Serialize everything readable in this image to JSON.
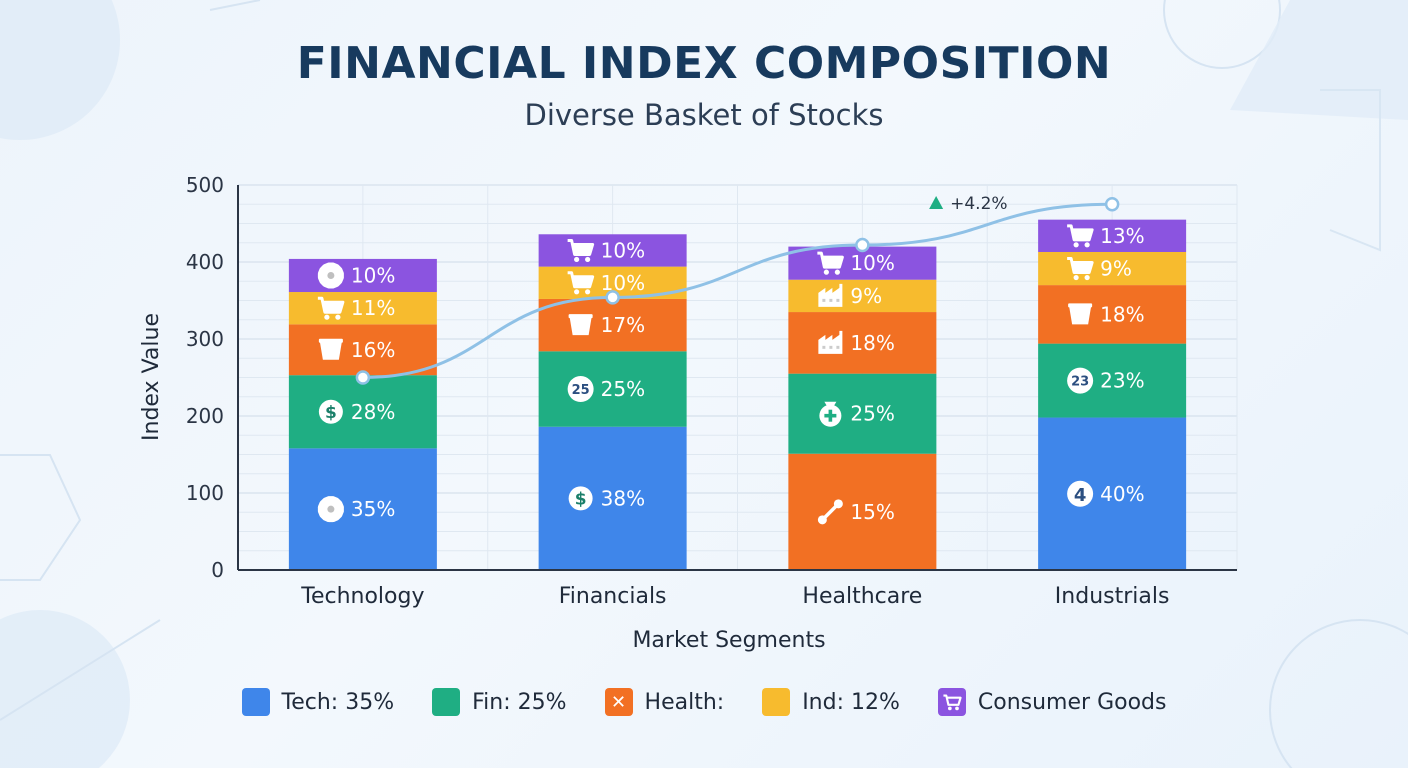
{
  "title": "FINANCIAL INDEX COMPOSITION",
  "subtitle": "Diverse Basket of Stocks",
  "chart_data": {
    "type": "bar",
    "stacked": true,
    "xlabel": "Market Segments",
    "ylabel": "Index Value",
    "ylim": [
      0,
      500
    ],
    "yticks": [
      0,
      100,
      200,
      300,
      400,
      500
    ],
    "grid": true,
    "categories": [
      "Technology",
      "Financials",
      "Healthcare",
      "Industrials"
    ],
    "bars": [
      {
        "category": "Technology",
        "segments": [
          {
            "value": 158,
            "label": "35%",
            "color": "#3f86ea",
            "icon": "gear-icon"
          },
          {
            "value": 95,
            "label": "28%",
            "color": "#1fae83",
            "icon": "dollar-icon"
          },
          {
            "value": 66,
            "label": "16%",
            "color": "#f27023",
            "icon": "basket-icon"
          },
          {
            "value": 42,
            "label": "11%",
            "color": "#f7bb2e",
            "icon": "cart-icon"
          },
          {
            "value": 43,
            "label": "10%",
            "color": "#8b54e0",
            "icon": "gear-icon"
          }
        ]
      },
      {
        "category": "Financials",
        "segments": [
          {
            "value": 186,
            "label": "38%",
            "color": "#3f86ea",
            "icon": "dollar-icon"
          },
          {
            "value": 98,
            "label": "25%",
            "color": "#1fae83",
            "icon": "number-25-icon",
            "icon_text": "25"
          },
          {
            "value": 68,
            "label": "17%",
            "color": "#f27023",
            "icon": "basket-icon"
          },
          {
            "value": 42,
            "label": "10%",
            "color": "#f7bb2e",
            "icon": "cart-icon"
          },
          {
            "value": 42,
            "label": "10%",
            "color": "#8b54e0",
            "icon": "cart-icon"
          }
        ]
      },
      {
        "category": "Healthcare",
        "segments": [
          {
            "value": 151,
            "label": "15%",
            "color": "#f27023",
            "icon": "link-icon"
          },
          {
            "value": 104,
            "label": "25%",
            "color": "#1fae83",
            "icon": "medical-bag-icon"
          },
          {
            "value": 80,
            "label": "18%",
            "color": "#f27023",
            "icon": "factory-icon"
          },
          {
            "value": 42,
            "label": "9%",
            "color": "#f7bb2e",
            "icon": "factory-icon"
          },
          {
            "value": 43,
            "label": "10%",
            "color": "#8b54e0",
            "icon": "cart-icon"
          }
        ]
      },
      {
        "category": "Industrials",
        "segments": [
          {
            "value": 198,
            "label": "40%",
            "color": "#3f86ea",
            "icon": "number-4-icon",
            "icon_text": "4"
          },
          {
            "value": 96,
            "label": "23%",
            "color": "#1fae83",
            "icon": "number-23-icon",
            "icon_text": "23"
          },
          {
            "value": 76,
            "label": "18%",
            "color": "#f27023",
            "icon": "basket-icon"
          },
          {
            "value": 43,
            "label": "9%",
            "color": "#f7bb2e",
            "icon": "cart-icon"
          },
          {
            "value": 42,
            "label": "13%",
            "color": "#8b54e0",
            "icon": "cart-icon"
          }
        ]
      }
    ],
    "trend_line": {
      "values": [
        250,
        354,
        422,
        475
      ],
      "color": "#8fc1e6"
    },
    "annotation": {
      "text": "+4.2%",
      "marker_color": "#1fae83",
      "category": "Industrials"
    },
    "legend": {
      "placement": "bottom",
      "items": [
        {
          "label": "Tech: 35%",
          "color": "#3f86ea",
          "icon": ""
        },
        {
          "label": "Fin: 25%",
          "color": "#1fae83",
          "icon": ""
        },
        {
          "label": "Health:",
          "color": "#f27023",
          "icon": "cross-icon"
        },
        {
          "label": "Ind: 12%",
          "color": "#f7bb2e",
          "icon": ""
        },
        {
          "label": "Consumer Goods",
          "color": "#8b54e0",
          "icon": "cart-icon"
        }
      ]
    }
  }
}
